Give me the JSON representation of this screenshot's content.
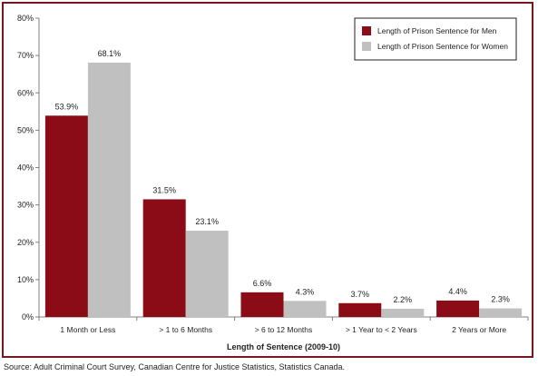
{
  "chart_data": {
    "type": "bar",
    "categories": [
      "1 Month or Less",
      "> 1 to 6 Months",
      "> 6 to 12 Months",
      "> 1 Year to < 2 Years",
      "2 Years or More"
    ],
    "series": [
      {
        "name": "Length of Prison Sentence for Men",
        "values": [
          53.9,
          31.5,
          6.6,
          3.7,
          4.4
        ],
        "labels": [
          "53.9%",
          "31.5%",
          "6.6%",
          "3.7%",
          "4.4%"
        ],
        "color": "#8b0c16"
      },
      {
        "name": "Length of Prison Sentence for Women",
        "values": [
          68.1,
          23.1,
          4.3,
          2.2,
          2.3
        ],
        "labels": [
          "68.1%",
          "23.1%",
          "4.3%",
          "2.2%",
          "2.3%"
        ],
        "color": "#c0c0c0"
      }
    ],
    "xlabel": "Length of Sentence (2009-10)",
    "ylabel": "",
    "ylim": [
      0,
      80
    ],
    "yticks": [
      0,
      10,
      20,
      30,
      40,
      50,
      60,
      70,
      80
    ],
    "ytick_labels": [
      "0%",
      "10%",
      "20%",
      "30%",
      "40%",
      "50%",
      "60%",
      "70%",
      "80%"
    ],
    "grid": false,
    "legend": "top-right"
  },
  "source": "Source:  Adult Criminal Court Survey, Canadian Centre for Justice Statistics, Statistics Canada."
}
